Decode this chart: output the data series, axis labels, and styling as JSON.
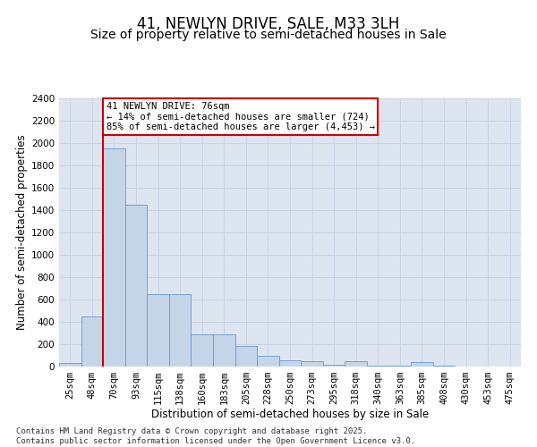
{
  "title": "41, NEWLYN DRIVE, SALE, M33 3LH",
  "subtitle": "Size of property relative to semi-detached houses in Sale",
  "xlabel": "Distribution of semi-detached houses by size in Sale",
  "ylabel": "Number of semi-detached properties",
  "bar_categories": [
    "25sqm",
    "48sqm",
    "70sqm",
    "93sqm",
    "115sqm",
    "138sqm",
    "160sqm",
    "183sqm",
    "205sqm",
    "228sqm",
    "250sqm",
    "273sqm",
    "295sqm",
    "318sqm",
    "340sqm",
    "363sqm",
    "385sqm",
    "408sqm",
    "430sqm",
    "453sqm",
    "475sqm"
  ],
  "bar_values": [
    30,
    450,
    1950,
    1450,
    650,
    650,
    290,
    290,
    185,
    100,
    60,
    50,
    20,
    50,
    10,
    5,
    40,
    5,
    3,
    2,
    2
  ],
  "bar_color": "#c5d5e8",
  "bar_edge_color": "#6699cc",
  "vline_pos": 1.5,
  "vline_color": "#cc0000",
  "annotation_text": "41 NEWLYN DRIVE: 76sqm\n← 14% of semi-detached houses are smaller (724)\n85% of semi-detached houses are larger (4,453) →",
  "annotation_box_color": "#ffffff",
  "annotation_box_edge": "#cc0000",
  "ylim": [
    0,
    2400
  ],
  "yticks": [
    0,
    200,
    400,
    600,
    800,
    1000,
    1200,
    1400,
    1600,
    1800,
    2000,
    2200,
    2400
  ],
  "grid_color": "#c8d4e4",
  "bg_color": "#dde5f0",
  "footer_text": "Contains HM Land Registry data © Crown copyright and database right 2025.\nContains public sector information licensed under the Open Government Licence v3.0.",
  "title_fontsize": 12,
  "subtitle_fontsize": 10,
  "axis_label_fontsize": 8.5,
  "tick_fontsize": 7.5,
  "footer_fontsize": 6.5
}
